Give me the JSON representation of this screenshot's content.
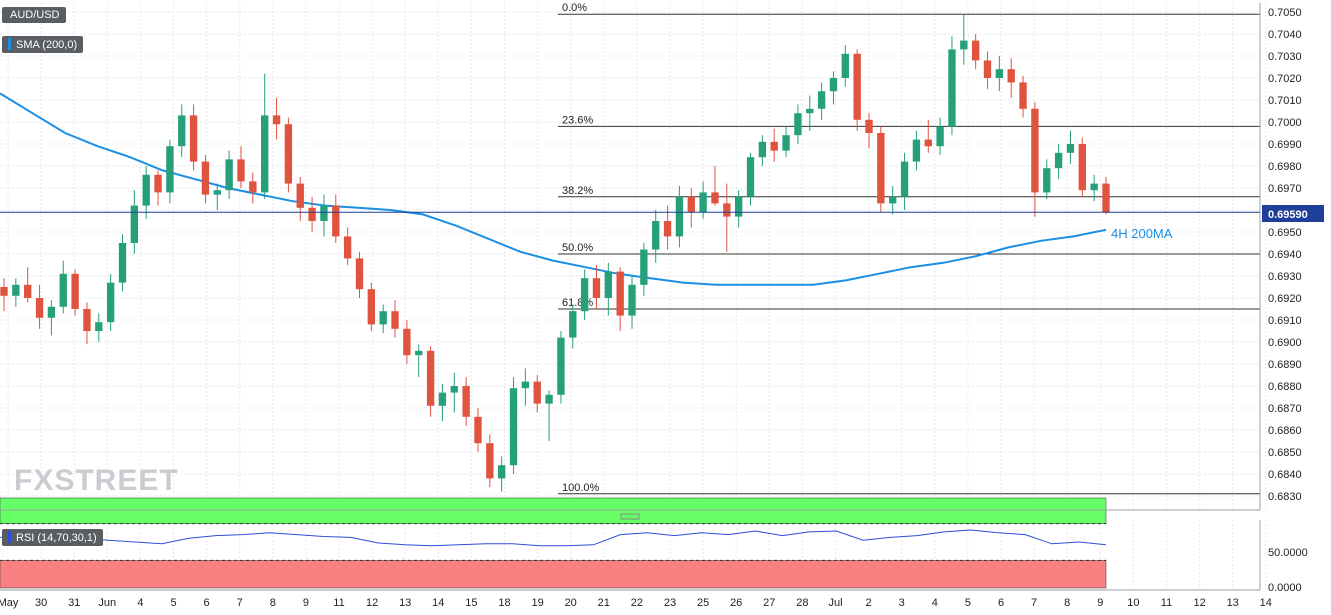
{
  "symbol": "AUD/USD",
  "indicator": "SMA (200,0)",
  "rsi_label": "RSI (14,70,30,1)",
  "ma_annotation": "4H 200MA",
  "current_price": "0.69590",
  "watermark": "FXSTREET",
  "colors": {
    "up": "#26a07a",
    "down": "#e0533f",
    "sma": "#1a8fe6",
    "rsi_line": "#2b4fd8",
    "overbought": "#66ff66",
    "oversold": "#f98080",
    "price_line": "#1f3f9a"
  },
  "chart_data": {
    "type": "candlestick",
    "y_ticks": [
      "0.6830",
      "0.6840",
      "0.6850",
      "0.6860",
      "0.6870",
      "0.6880",
      "0.6890",
      "0.6900",
      "0.6910",
      "0.6920",
      "0.6930",
      "0.6940",
      "0.6950",
      "0.6960",
      "0.6970",
      "0.6980",
      "0.6990",
      "0.7000",
      "0.7010",
      "0.7020",
      "0.7030",
      "0.7040",
      "0.7050"
    ],
    "ylim": [
      0.6825,
      0.7055
    ],
    "x_ticks": [
      "May",
      "30",
      "31",
      "Jun",
      "4",
      "5",
      "6",
      "7",
      "8",
      "9",
      "11",
      "12",
      "13",
      "14",
      "15",
      "18",
      "19",
      "20",
      "21",
      "22",
      "23",
      "25",
      "26",
      "27",
      "28",
      "Jul",
      "2",
      "3",
      "4",
      "5",
      "6",
      "7",
      "8",
      "9",
      "10",
      "11",
      "12",
      "13",
      "14"
    ],
    "fibonacci": [
      {
        "label": "0.0%",
        "value": 0.7049
      },
      {
        "label": "23.6%",
        "value": 0.6998
      },
      {
        "label": "38.2%",
        "value": 0.6966
      },
      {
        "label": "50.0%",
        "value": 0.694
      },
      {
        "label": "61.8%",
        "value": 0.6915
      },
      {
        "label": "100.0%",
        "value": 0.6831
      }
    ],
    "sma_200": [
      0.7013,
      0.7004,
      0.6995,
      0.6989,
      0.6984,
      0.6978,
      0.6974,
      0.697,
      0.6967,
      0.6964,
      0.6962,
      0.6961,
      0.696,
      0.6958,
      0.6953,
      0.6947,
      0.6941,
      0.6937,
      0.6934,
      0.6931,
      0.6929,
      0.6927,
      0.6926,
      0.6926,
      0.6926,
      0.6926,
      0.6928,
      0.6931,
      0.6934,
      0.6936,
      0.6939,
      0.6943,
      0.6946,
      0.6948,
      0.6951
    ],
    "rsi": [
      55,
      57,
      58,
      55,
      52,
      50,
      48,
      54,
      57,
      58,
      60,
      58,
      56,
      55,
      49,
      47,
      46,
      47,
      48,
      48,
      46,
      46,
      47,
      58,
      60,
      57,
      60,
      58,
      62,
      57,
      61,
      62,
      52,
      55,
      57,
      61,
      63,
      60,
      58,
      48,
      50,
      47
    ],
    "rsi_levels": [
      70,
      30
    ],
    "rsi_ticks": [
      "50.0000",
      "0.0000"
    ],
    "candles": [
      [
        0.6925,
        0.6929,
        0.6914,
        0.6921
      ],
      [
        0.6921,
        0.6929,
        0.6916,
        0.6926
      ],
      [
        0.6926,
        0.6934,
        0.6918,
        0.692
      ],
      [
        0.692,
        0.6926,
        0.6906,
        0.6911
      ],
      [
        0.6911,
        0.6919,
        0.6903,
        0.6916
      ],
      [
        0.6916,
        0.6937,
        0.6913,
        0.6931
      ],
      [
        0.6931,
        0.6933,
        0.6912,
        0.6915
      ],
      [
        0.6915,
        0.6918,
        0.6899,
        0.6905
      ],
      [
        0.6905,
        0.6913,
        0.69,
        0.6909
      ],
      [
        0.6909,
        0.6931,
        0.6905,
        0.6927
      ],
      [
        0.6927,
        0.6949,
        0.6923,
        0.6945
      ],
      [
        0.6945,
        0.6969,
        0.694,
        0.6962
      ],
      [
        0.6962,
        0.698,
        0.6956,
        0.6976
      ],
      [
        0.6976,
        0.6978,
        0.6962,
        0.6968
      ],
      [
        0.6968,
        0.6992,
        0.6963,
        0.6989
      ],
      [
        0.6989,
        0.7008,
        0.6984,
        0.7003
      ],
      [
        0.7003,
        0.7008,
        0.6978,
        0.6982
      ],
      [
        0.6982,
        0.6985,
        0.6963,
        0.6967
      ],
      [
        0.6967,
        0.6972,
        0.696,
        0.6969
      ],
      [
        0.6969,
        0.6987,
        0.6965,
        0.6983
      ],
      [
        0.6983,
        0.6989,
        0.697,
        0.6973
      ],
      [
        0.6973,
        0.6977,
        0.6963,
        0.6968
      ],
      [
        0.6968,
        0.7022,
        0.6965,
        0.7003
      ],
      [
        0.7003,
        0.7011,
        0.6992,
        0.6999
      ],
      [
        0.6999,
        0.7002,
        0.6968,
        0.6972
      ],
      [
        0.6972,
        0.6975,
        0.6955,
        0.6961
      ],
      [
        0.6961,
        0.6966,
        0.695,
        0.6955
      ],
      [
        0.6955,
        0.6967,
        0.6948,
        0.6962
      ],
      [
        0.6962,
        0.6967,
        0.6945,
        0.6948
      ],
      [
        0.6948,
        0.6952,
        0.6935,
        0.6938
      ],
      [
        0.6938,
        0.6941,
        0.692,
        0.6924
      ],
      [
        0.6924,
        0.6927,
        0.6905,
        0.6908
      ],
      [
        0.6908,
        0.6917,
        0.6904,
        0.6914
      ],
      [
        0.6914,
        0.6919,
        0.6902,
        0.6906
      ],
      [
        0.6906,
        0.691,
        0.689,
        0.6894
      ],
      [
        0.6894,
        0.6899,
        0.6884,
        0.6896
      ],
      [
        0.6896,
        0.6898,
        0.6866,
        0.6871
      ],
      [
        0.6871,
        0.6881,
        0.6864,
        0.6877
      ],
      [
        0.6877,
        0.6886,
        0.6868,
        0.688
      ],
      [
        0.688,
        0.6884,
        0.6862,
        0.6866
      ],
      [
        0.6866,
        0.687,
        0.685,
        0.6854
      ],
      [
        0.6854,
        0.6858,
        0.6834,
        0.6838
      ],
      [
        0.6838,
        0.6848,
        0.6832,
        0.6844
      ],
      [
        0.6844,
        0.6884,
        0.684,
        0.6879
      ],
      [
        0.6879,
        0.6888,
        0.6871,
        0.6882
      ],
      [
        0.6882,
        0.6885,
        0.6868,
        0.6872
      ],
      [
        0.6872,
        0.6878,
        0.6855,
        0.6876
      ],
      [
        0.6876,
        0.6905,
        0.6872,
        0.6902
      ],
      [
        0.6902,
        0.6917,
        0.6897,
        0.6914
      ],
      [
        0.6914,
        0.6933,
        0.691,
        0.6929
      ],
      [
        0.6929,
        0.6935,
        0.6915,
        0.692
      ],
      [
        0.692,
        0.6936,
        0.6912,
        0.6932
      ],
      [
        0.6932,
        0.6934,
        0.6905,
        0.6912
      ],
      [
        0.6912,
        0.693,
        0.6906,
        0.6926
      ],
      [
        0.6926,
        0.6945,
        0.6921,
        0.6942
      ],
      [
        0.6942,
        0.696,
        0.6936,
        0.6955
      ],
      [
        0.6955,
        0.6962,
        0.6942,
        0.6948
      ],
      [
        0.6948,
        0.6971,
        0.6943,
        0.6966
      ],
      [
        0.6966,
        0.697,
        0.6952,
        0.6959
      ],
      [
        0.6959,
        0.6973,
        0.6956,
        0.6968
      ],
      [
        0.6968,
        0.698,
        0.6962,
        0.6963
      ],
      [
        0.6963,
        0.6972,
        0.6941,
        0.6957
      ],
      [
        0.6957,
        0.6969,
        0.6952,
        0.6966
      ],
      [
        0.6966,
        0.6986,
        0.6962,
        0.6984
      ],
      [
        0.6984,
        0.6994,
        0.698,
        0.6991
      ],
      [
        0.6991,
        0.6997,
        0.6982,
        0.6987
      ],
      [
        0.6987,
        0.6998,
        0.6984,
        0.6994
      ],
      [
        0.6994,
        0.7008,
        0.699,
        0.7004
      ],
      [
        0.7004,
        0.7012,
        0.6996,
        0.7006
      ],
      [
        0.7006,
        0.7018,
        0.7001,
        0.7014
      ],
      [
        0.7014,
        0.7023,
        0.7008,
        0.702
      ],
      [
        0.702,
        0.7035,
        0.7016,
        0.7031
      ],
      [
        0.7031,
        0.7033,
        0.6996,
        0.7001
      ],
      [
        0.7001,
        0.7004,
        0.6988,
        0.6995
      ],
      [
        0.6995,
        0.6998,
        0.6959,
        0.6963
      ],
      [
        0.6963,
        0.6971,
        0.6958,
        0.6966
      ],
      [
        0.6966,
        0.6986,
        0.696,
        0.6982
      ],
      [
        0.6982,
        0.6996,
        0.6978,
        0.6992
      ],
      [
        0.6992,
        0.7001,
        0.6986,
        0.6989
      ],
      [
        0.6989,
        0.7002,
        0.6985,
        0.6998
      ],
      [
        0.6998,
        0.7039,
        0.6994,
        0.7033
      ],
      [
        0.7033,
        0.7049,
        0.7026,
        0.7037
      ],
      [
        0.7037,
        0.704,
        0.7024,
        0.7028
      ],
      [
        0.7028,
        0.7032,
        0.7015,
        0.702
      ],
      [
        0.702,
        0.703,
        0.7014,
        0.7024
      ],
      [
        0.7024,
        0.7029,
        0.7011,
        0.7018
      ],
      [
        0.7018,
        0.7021,
        0.7002,
        0.7006
      ],
      [
        0.7006,
        0.7009,
        0.6957,
        0.6968
      ],
      [
        0.6968,
        0.6983,
        0.6965,
        0.6979
      ],
      [
        0.6979,
        0.699,
        0.6974,
        0.6986
      ],
      [
        0.6986,
        0.6996,
        0.6981,
        0.699
      ],
      [
        0.699,
        0.6993,
        0.6966,
        0.6969
      ],
      [
        0.6969,
        0.6976,
        0.6964,
        0.6972
      ],
      [
        0.6972,
        0.6975,
        0.6958,
        0.6959
      ]
    ]
  }
}
